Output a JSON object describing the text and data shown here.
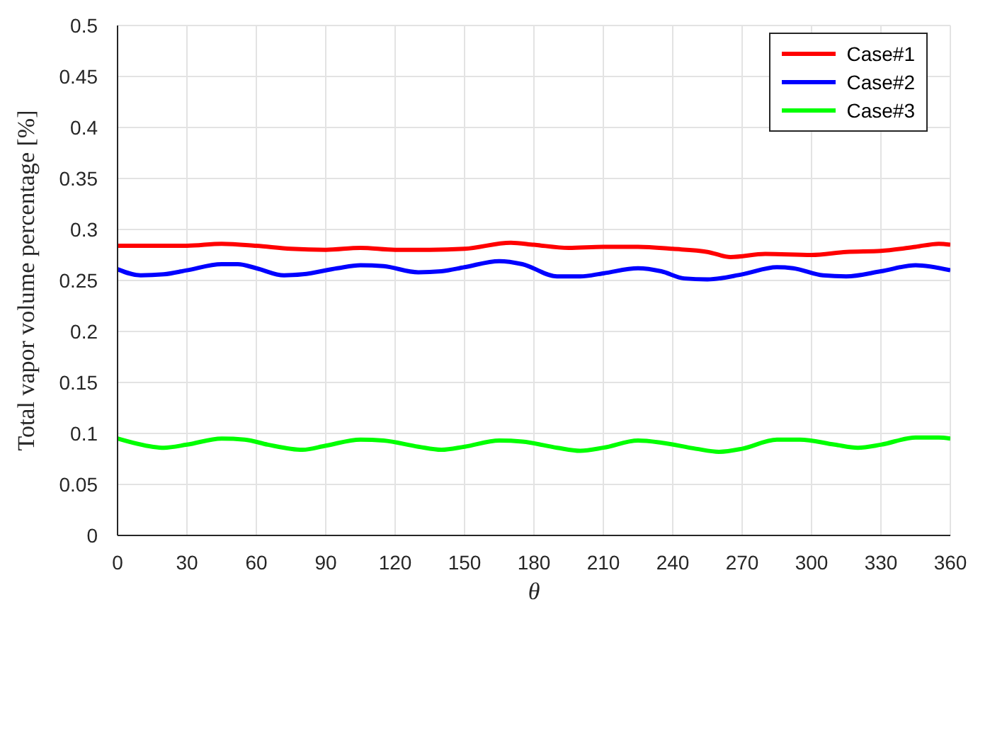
{
  "chart_data": {
    "type": "line",
    "xlabel": "θ",
    "ylabel": "Total vapor volume percentage [%]",
    "xlim": [
      0,
      360
    ],
    "xticks": [
      0,
      30,
      60,
      90,
      120,
      150,
      180,
      210,
      240,
      270,
      300,
      330,
      360
    ],
    "ylim": [
      0,
      0.5
    ],
    "yticks": [
      0,
      0.05,
      0.1,
      0.15,
      0.2,
      0.25,
      0.3,
      0.35,
      0.4,
      0.45,
      0.5
    ],
    "grid": true,
    "legend": "top right",
    "marker": "none",
    "line_style": "solid",
    "series": [
      {
        "name": "Case#1",
        "color": "#ff0000",
        "x": [
          0,
          15,
          30,
          45,
          60,
          75,
          90,
          105,
          120,
          135,
          150,
          170,
          180,
          195,
          210,
          225,
          240,
          255,
          265,
          280,
          300,
          315,
          330,
          345,
          355,
          360
        ],
        "values": [
          0.284,
          0.284,
          0.284,
          0.286,
          0.284,
          0.281,
          0.28,
          0.282,
          0.28,
          0.28,
          0.281,
          0.287,
          0.285,
          0.282,
          0.283,
          0.283,
          0.281,
          0.278,
          0.273,
          0.276,
          0.275,
          0.278,
          0.279,
          0.283,
          0.286,
          0.285
        ]
      },
      {
        "name": "Case#2",
        "color": "#0000ff",
        "x": [
          0,
          10,
          20,
          30,
          45,
          52,
          60,
          72,
          80,
          95,
          105,
          115,
          130,
          140,
          150,
          165,
          175,
          190,
          200,
          210,
          225,
          235,
          245,
          255,
          270,
          285,
          292,
          305,
          315,
          330,
          345,
          360
        ],
        "values": [
          0.261,
          0.255,
          0.256,
          0.26,
          0.266,
          0.266,
          0.262,
          0.255,
          0.256,
          0.262,
          0.265,
          0.264,
          0.258,
          0.259,
          0.263,
          0.269,
          0.266,
          0.254,
          0.254,
          0.257,
          0.262,
          0.259,
          0.252,
          0.251,
          0.256,
          0.263,
          0.262,
          0.255,
          0.254,
          0.259,
          0.265,
          0.26
        ]
      },
      {
        "name": "Case#3",
        "color": "#00ff00",
        "x": [
          0,
          15,
          20,
          30,
          45,
          55,
          65,
          80,
          90,
          105,
          115,
          130,
          140,
          150,
          165,
          175,
          190,
          200,
          210,
          225,
          235,
          250,
          260,
          270,
          285,
          295,
          310,
          320,
          330,
          345,
          355,
          360
        ],
        "values": [
          0.095,
          0.087,
          0.086,
          0.089,
          0.095,
          0.094,
          0.089,
          0.084,
          0.088,
          0.094,
          0.093,
          0.087,
          0.084,
          0.087,
          0.093,
          0.092,
          0.086,
          0.083,
          0.086,
          0.093,
          0.091,
          0.085,
          0.082,
          0.085,
          0.094,
          0.094,
          0.089,
          0.086,
          0.089,
          0.096,
          0.096,
          0.095
        ]
      }
    ]
  }
}
